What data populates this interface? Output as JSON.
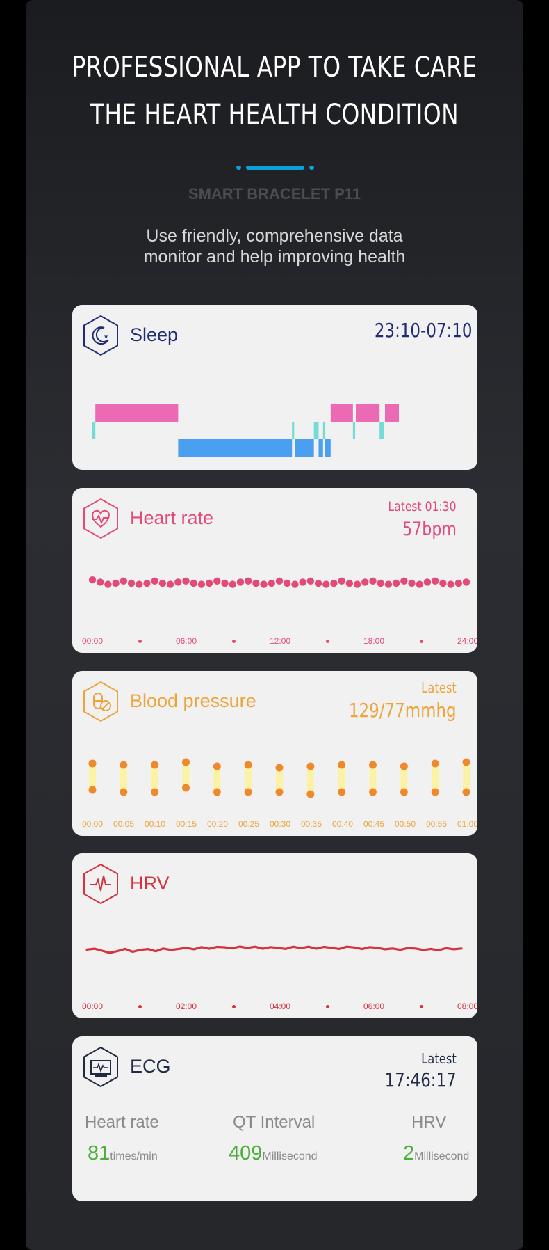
{
  "header": {
    "title_line1": "PROFESSIONAL APP TO TAKE CARE",
    "title_line2": "THE HEART HEALTH CONDITION",
    "subtitle": "SMART BRACELET P11",
    "description_line1": "Use friendly, comprehensive data",
    "description_line2": "monitor and help improving health"
  },
  "colors": {
    "accent": "#0f9fd9",
    "sleep": "#1f2c74",
    "deep_sleep": "#4a9ff0",
    "light_sleep": "#ea6bb4",
    "awake": "#74dbd6",
    "heart": "#e24b77",
    "blood_pressure": "#eea33b",
    "hrv": "#d5343f",
    "ecg": "#1f2a45",
    "ecg_value": "#4caf3c"
  },
  "sleep": {
    "icon": "moon-star-icon",
    "title": "Sleep",
    "range": "23:10-07:10",
    "chart_data": {
      "type": "bar",
      "legend": "none",
      "segments": [
        {
          "stage": "awake",
          "start": 0.0,
          "end": 0.008
        },
        {
          "stage": "light",
          "start": 0.008,
          "end": 0.235
        },
        {
          "stage": "deep",
          "start": 0.235,
          "end": 0.547
        },
        {
          "stage": "awake",
          "start": 0.547,
          "end": 0.553
        },
        {
          "stage": "deep",
          "start": 0.553,
          "end": 0.607
        },
        {
          "stage": "awake",
          "start": 0.607,
          "end": 0.62
        },
        {
          "stage": "deep",
          "start": 0.62,
          "end": 0.632
        },
        {
          "stage": "awake",
          "start": 0.632,
          "end": 0.638
        },
        {
          "stage": "deep",
          "start": 0.638,
          "end": 0.653
        },
        {
          "stage": "light",
          "start": 0.653,
          "end": 0.714
        },
        {
          "stage": "awake",
          "start": 0.714,
          "end": 0.72
        },
        {
          "stage": "light",
          "start": 0.72,
          "end": 0.787
        },
        {
          "stage": "awake",
          "start": 0.787,
          "end": 0.8
        },
        {
          "stage": "light",
          "start": 0.8,
          "end": 0.84
        }
      ]
    }
  },
  "heart_rate": {
    "icon": "heart-pulse-icon",
    "title": "Heart rate",
    "latest_label": "Latest 01:30",
    "latest_value": "57bpm",
    "ticks": [
      "00:00",
      "06:00",
      "12:00",
      "18:00",
      "24:00"
    ],
    "chart_data": {
      "type": "scatter",
      "x_range": [
        0,
        24
      ],
      "values": [
        3,
        1,
        -1,
        0,
        2,
        0,
        -1,
        0,
        2,
        0,
        -1,
        1,
        2,
        0,
        -1,
        0,
        2,
        0,
        -1,
        1,
        2,
        0,
        -1,
        0,
        2,
        0,
        -1,
        1,
        2,
        0,
        -1,
        0,
        2,
        0,
        -1,
        1,
        2,
        0,
        -1,
        0,
        2,
        0,
        -1,
        1,
        2,
        0,
        -1,
        0,
        1
      ]
    }
  },
  "blood_pressure": {
    "icon": "pills-icon",
    "title": "Blood pressure",
    "latest_label": "Latest",
    "latest_value": "129/77mmhg",
    "ticks": [
      "00:00",
      "00:05",
      "00:10",
      "00:15",
      "00:20",
      "00:25",
      "00:30",
      "00:35",
      "00:40",
      "00:45",
      "00:50",
      "00:55",
      "01:00"
    ],
    "chart_data": {
      "type": "bar",
      "systolic_offset": [
        1,
        0,
        0,
        2,
        -1,
        0,
        -2,
        -1,
        0,
        0,
        -1,
        1,
        2
      ],
      "diastolic_offset": [
        0,
        -1,
        -1,
        1,
        -1,
        -1,
        -1,
        -2,
        -1,
        -1,
        -1,
        -1,
        -1
      ]
    }
  },
  "hrv": {
    "icon": "pulse-line-icon",
    "title": "HRV",
    "ticks": [
      "00:00",
      "02:00",
      "04:00",
      "06:00",
      "08:00"
    ],
    "chart_data": {
      "type": "line",
      "x_range": [
        0,
        8
      ],
      "values": [
        1,
        1.5,
        0.4,
        -0.8,
        0.2,
        1.4,
        -0.2,
        0.9,
        1.3,
        0.1,
        1.6,
        0.8,
        1.4,
        2.0,
        1.2,
        2.4,
        1.5,
        2.5,
        2.3,
        1.7,
        2.7,
        1.9,
        2.6,
        1.5,
        2.4,
        2.0,
        1.4,
        2.6,
        1.8,
        2.6,
        1.5,
        2.5,
        2.0,
        1.4,
        2.6,
        2.2,
        1.3,
        2.4,
        2.0,
        1.2,
        1.6,
        0.9,
        1.9,
        1.6,
        0.8,
        1.4,
        0.7,
        1.8,
        1.2,
        1.6
      ]
    }
  },
  "ecg": {
    "icon": "monitor-ecg-icon",
    "title": "ECG",
    "latest_label": "Latest",
    "latest_time": "17:46:17",
    "metrics": [
      {
        "label": "Heart rate",
        "value": "81",
        "unit": "times/min"
      },
      {
        "label": "QT Interval",
        "value": "409",
        "unit": "Millisecond"
      },
      {
        "label": "HRV",
        "value": "2",
        "unit": "Millisecond"
      }
    ]
  }
}
